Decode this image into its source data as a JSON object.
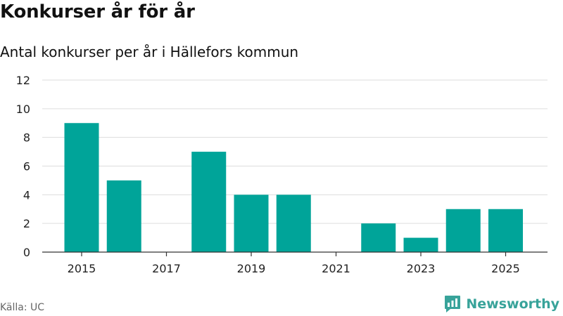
{
  "title": "Konkurser år för år",
  "subtitle": "Antal konkurser per år i Hällefors kommun",
  "source": "Källa: UC",
  "brand": {
    "name": "Newsworthy",
    "icon": "newsworthy-logo-icon",
    "color": "#38a39a"
  },
  "chart_data": {
    "type": "bar",
    "title": "Konkurser år för år",
    "subtitle": "Antal konkurser per år i Hällefors kommun",
    "categories": [
      2015,
      2016,
      2017,
      2018,
      2019,
      2020,
      2021,
      2022,
      2023,
      2024,
      2025
    ],
    "values": [
      9,
      5,
      0,
      7,
      4,
      4,
      0,
      2,
      1,
      3,
      3
    ],
    "x_ticks": [
      "2015",
      "2017",
      "2019",
      "2021",
      "2023",
      "2025"
    ],
    "y_ticks": [
      0,
      2,
      4,
      6,
      8,
      10,
      12
    ],
    "ylim": [
      0,
      12
    ],
    "bar_color": "#00a499",
    "grid": true,
    "legend": "none"
  }
}
